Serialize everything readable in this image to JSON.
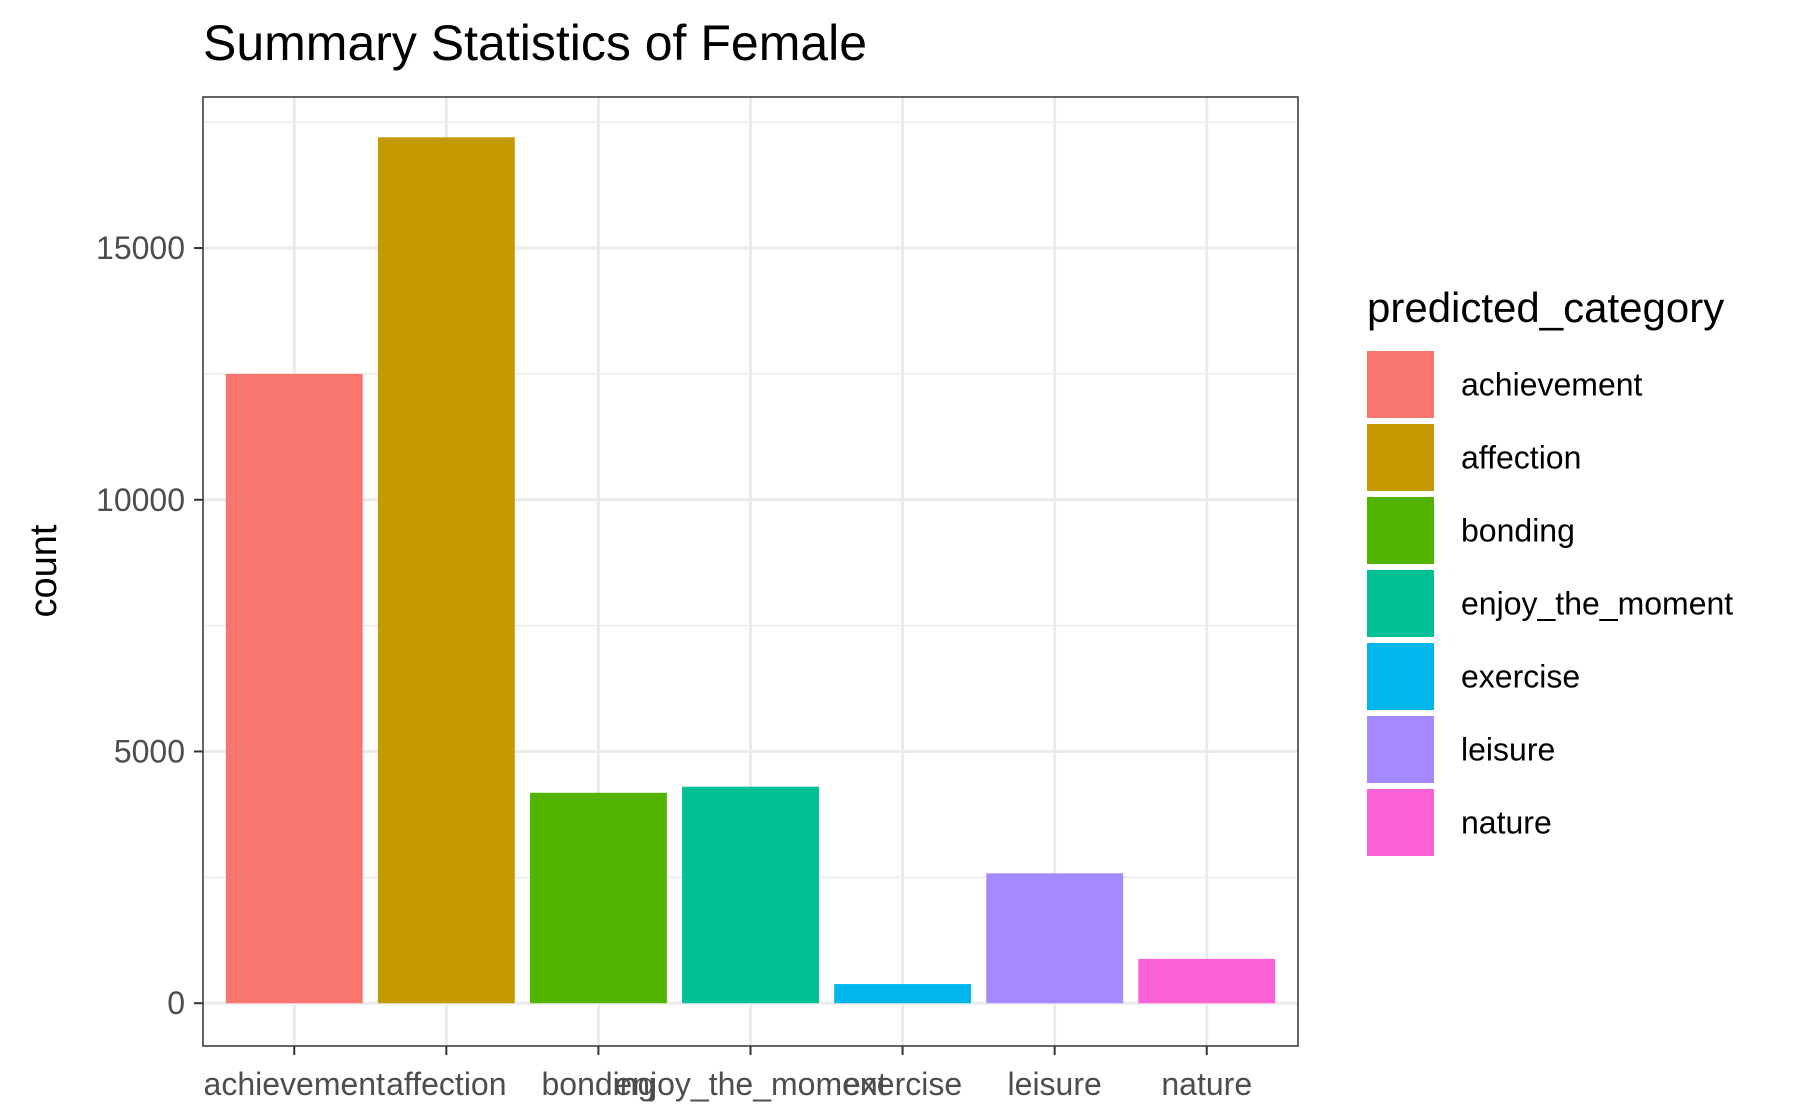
{
  "chart_data": {
    "type": "bar",
    "title": "Summary Statistics of Female",
    "xlabel": "",
    "ylabel": "count",
    "categories": [
      "achievement",
      "affection",
      "bonding",
      "enjoy_the_moment",
      "exercise",
      "leisure",
      "nature"
    ],
    "values": [
      12500,
      17200,
      4180,
      4300,
      380,
      2580,
      880
    ],
    "ylim": [
      -850,
      18000
    ],
    "yticks": [
      0,
      5000,
      10000,
      15000
    ],
    "ytick_labels": [
      "0",
      "5000",
      "10000",
      "15000"
    ],
    "grid": true,
    "legend": {
      "title": "predicted_category",
      "position": "right",
      "entries": [
        "achievement",
        "affection",
        "bonding",
        "enjoy_the_moment",
        "exercise",
        "leisure",
        "nature"
      ]
    },
    "colors": [
      "#F8766D",
      "#C49A00",
      "#53B400",
      "#00C094",
      "#00B6EB",
      "#A58AFF",
      "#FB61D7"
    ]
  }
}
